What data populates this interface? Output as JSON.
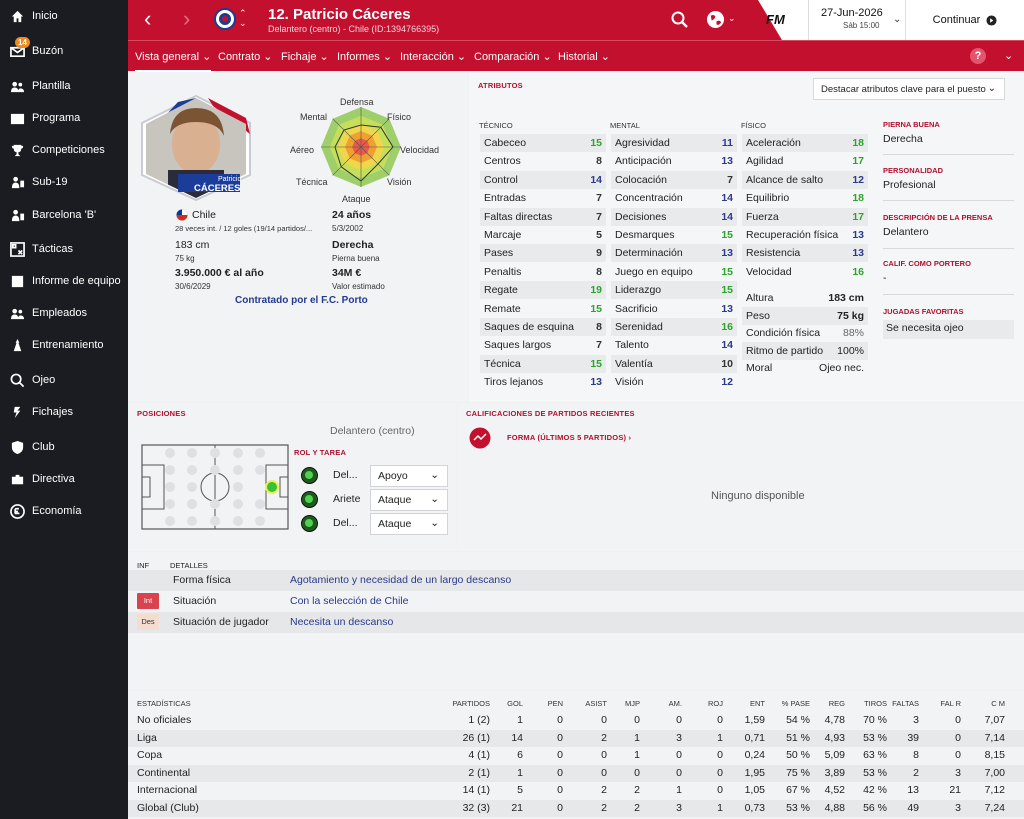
{
  "sidebar": {
    "items": [
      {
        "label": "Inicio",
        "icon": "home-icon"
      },
      {
        "label": "Buzón",
        "icon": "inbox-icon",
        "badge": "14"
      },
      {
        "label": "Plantilla",
        "icon": "squad-icon"
      },
      {
        "label": "Programa",
        "icon": "schedule-icon"
      },
      {
        "label": "Competiciones",
        "icon": "trophy-icon"
      },
      {
        "label": "Sub-19",
        "icon": "youth-icon"
      },
      {
        "label": "Barcelona 'B'",
        "icon": "reserve-icon"
      },
      {
        "label": "Tácticas",
        "icon": "tactics-icon"
      },
      {
        "label": "Informe de equipo",
        "icon": "report-icon"
      },
      {
        "label": "Empleados",
        "icon": "staff-icon"
      },
      {
        "label": "Entrenamiento",
        "icon": "training-icon"
      },
      {
        "label": "Ojeo",
        "icon": "scouting-icon"
      },
      {
        "label": "Fichajes",
        "icon": "transfers-icon"
      },
      {
        "label": "Club",
        "icon": "club-icon"
      },
      {
        "label": "Directiva",
        "icon": "board-icon"
      },
      {
        "label": "Economía",
        "icon": "finance-icon"
      }
    ]
  },
  "header": {
    "player_name": "12. Patricio Cáceres",
    "player_sub": "Delantero (centro) - Chile (ID:1394766395)",
    "fm_logo": "FM",
    "date": "27-Jun-2026",
    "date_sub": "Sáb 15:00",
    "continue_label": "Continuar",
    "help": "?"
  },
  "nav": {
    "tabs": [
      {
        "label": "Vista general"
      },
      {
        "label": "Contrato"
      },
      {
        "label": "Fichaje"
      },
      {
        "label": "Informes"
      },
      {
        "label": "Interacción"
      },
      {
        "label": "Comparación"
      },
      {
        "label": "Historial"
      }
    ]
  },
  "profile": {
    "card_name_small": "Patricio",
    "card_name": "CÁCERES",
    "nation": "Chile",
    "caps": "28 veces int. / 12 goles (19/14 partidos/...",
    "height": "183 cm",
    "weight": "75 kg",
    "wage": "3.950.000 € al año",
    "contract_end": "30/6/2029",
    "age": "24 años",
    "dob": "5/3/2002",
    "foot": "Derecha",
    "foot_label": "Pierna buena",
    "value": "34M €",
    "value_label": "Valor estimado",
    "loan": "Contratado por el F.C. Porto",
    "radar_labels": {
      "defensa": "Defensa",
      "fisico": "Físico",
      "velocidad": "Velocidad",
      "vision": "Visión",
      "ataque": "Ataque",
      "tecnica": "Técnica",
      "aereo": "Aéreo",
      "mental": "Mental"
    },
    "radar_values": [
      0.55,
      0.7,
      0.8,
      0.6,
      0.85,
      0.7,
      0.65,
      0.6
    ]
  },
  "attributes": {
    "title": "Atributos",
    "highlight_select": "Destacar atributos clave para el puesto",
    "tecnico_title": "Técnico",
    "mental_title": "Mental",
    "fisico_title": "Físico",
    "tecnico": [
      {
        "name": "Cabeceo",
        "value": "15",
        "c": "g"
      },
      {
        "name": "Centros",
        "value": "8",
        "c": "m"
      },
      {
        "name": "Control",
        "value": "14",
        "c": "n"
      },
      {
        "name": "Entradas",
        "value": "7",
        "c": "m"
      },
      {
        "name": "Faltas directas",
        "value": "7",
        "c": "m"
      },
      {
        "name": "Marcaje",
        "value": "5",
        "c": "m"
      },
      {
        "name": "Pases",
        "value": "9",
        "c": "m"
      },
      {
        "name": "Penaltis",
        "value": "8",
        "c": "m"
      },
      {
        "name": "Regate",
        "value": "19",
        "c": "g"
      },
      {
        "name": "Remate",
        "value": "15",
        "c": "g"
      },
      {
        "name": "Saques de esquina",
        "value": "8",
        "c": "m"
      },
      {
        "name": "Saques largos",
        "value": "7",
        "c": "m"
      },
      {
        "name": "Técnica",
        "value": "15",
        "c": "g"
      },
      {
        "name": "Tiros lejanos",
        "value": "13",
        "c": "n"
      }
    ],
    "mental": [
      {
        "name": "Agresividad",
        "value": "11",
        "c": "n"
      },
      {
        "name": "Anticipación",
        "value": "13",
        "c": "n"
      },
      {
        "name": "Colocación",
        "value": "7",
        "c": "m"
      },
      {
        "name": "Concentración",
        "value": "14",
        "c": "n"
      },
      {
        "name": "Decisiones",
        "value": "14",
        "c": "n"
      },
      {
        "name": "Desmarques",
        "value": "15",
        "c": "g"
      },
      {
        "name": "Determinación",
        "value": "13",
        "c": "n"
      },
      {
        "name": "Juego en equipo",
        "value": "15",
        "c": "g"
      },
      {
        "name": "Liderazgo",
        "value": "15",
        "c": "g"
      },
      {
        "name": "Sacrificio",
        "value": "13",
        "c": "n"
      },
      {
        "name": "Serenidad",
        "value": "16",
        "c": "g"
      },
      {
        "name": "Talento",
        "value": "14",
        "c": "n"
      },
      {
        "name": "Valentía",
        "value": "10",
        "c": "m"
      },
      {
        "name": "Visión",
        "value": "12",
        "c": "n"
      }
    ],
    "fisico": [
      {
        "name": "Aceleración",
        "value": "18",
        "c": "g"
      },
      {
        "name": "Agilidad",
        "value": "17",
        "c": "g"
      },
      {
        "name": "Alcance de salto",
        "value": "12",
        "c": "n"
      },
      {
        "name": "Equilibrio",
        "value": "18",
        "c": "g"
      },
      {
        "name": "Fuerza",
        "value": "17",
        "c": "g"
      },
      {
        "name": "Recuperación física",
        "value": "13",
        "c": "n"
      },
      {
        "name": "Resistencia",
        "value": "13",
        "c": "n"
      },
      {
        "name": "Velocidad",
        "value": "16",
        "c": "g"
      }
    ],
    "extra": [
      {
        "name": "Altura",
        "value": "183 cm"
      },
      {
        "name": "Peso",
        "value": "75 kg"
      },
      {
        "name": "Condición física",
        "value": "88%"
      },
      {
        "name": "Ritmo de partido",
        "value": "100%"
      },
      {
        "name": "Moral",
        "value": "Ojeo nec."
      }
    ],
    "side": {
      "pierna_label": "Pierna buena",
      "pierna": "Derecha",
      "personalidad_label": "Personalidad",
      "personalidad": "Profesional",
      "prensa_label": "Descripción de la prensa",
      "prensa": "Delantero",
      "portero_label": "Calif. como portero",
      "portero": "-",
      "jugadas_label": "Jugadas favoritas",
      "jugadas": "Se necesita ojeo"
    }
  },
  "positions": {
    "title": "Posiciones",
    "main_position": "Delantero (centro)",
    "role_title": "Rol y tarea",
    "roles": [
      {
        "role": "Del...",
        "duty": "Apoyo"
      },
      {
        "role": "Ariete",
        "duty": "Ataque"
      },
      {
        "role": "Del...",
        "duty": "Ataque"
      }
    ]
  },
  "recent": {
    "title": "Calificaciones de partidos recientes",
    "form_label": "Forma (últimos 5 partidos) ›",
    "none": "Ninguno disponible"
  },
  "details": {
    "inf": "Inf",
    "detalles": "Detalles",
    "rows": [
      {
        "tag": "",
        "label": "Forma física",
        "value": "Agotamiento y necesidad de un largo descanso"
      },
      {
        "tag": "Int",
        "label": "Situación",
        "value": "Con la selección de Chile"
      },
      {
        "tag": "Des",
        "label": "Situación de jugador",
        "value": "Necesita un descanso"
      }
    ]
  },
  "stats": {
    "headers": [
      "Estadísticas",
      "Partidos",
      "Gol",
      "Pen",
      "Asist",
      "MJP",
      "Am.",
      "Roj",
      "Ent",
      "% Pase",
      "Reg",
      "Tiros",
      "Faltas",
      "Fal R",
      "C M"
    ],
    "rows": [
      [
        "No oficiales",
        "1 (2)",
        "1",
        "0",
        "0",
        "0",
        "0",
        "0",
        "1,59",
        "54 %",
        "4,78",
        "70 %",
        "3",
        "0",
        "7,07"
      ],
      [
        "Liga",
        "26 (1)",
        "14",
        "0",
        "2",
        "1",
        "3",
        "1",
        "0,71",
        "51 %",
        "4,93",
        "53 %",
        "39",
        "0",
        "7,14"
      ],
      [
        "Copa",
        "4 (1)",
        "6",
        "0",
        "0",
        "1",
        "0",
        "0",
        "0,24",
        "50 %",
        "5,09",
        "63 %",
        "8",
        "0",
        "8,15"
      ],
      [
        "Continental",
        "2 (1)",
        "1",
        "0",
        "0",
        "0",
        "0",
        "0",
        "1,95",
        "75 %",
        "3,89",
        "53 %",
        "2",
        "3",
        "7,00"
      ],
      [
        "Internacional",
        "14 (1)",
        "5",
        "0",
        "2",
        "2",
        "1",
        "0",
        "1,05",
        "67 %",
        "4,52",
        "42 %",
        "13",
        "21",
        "7,12"
      ],
      [
        "Global (Club)",
        "32 (3)",
        "21",
        "0",
        "2",
        "2",
        "3",
        "1",
        "0,73",
        "53 %",
        "4,88",
        "56 %",
        "49",
        "3",
        "7,24"
      ]
    ]
  }
}
